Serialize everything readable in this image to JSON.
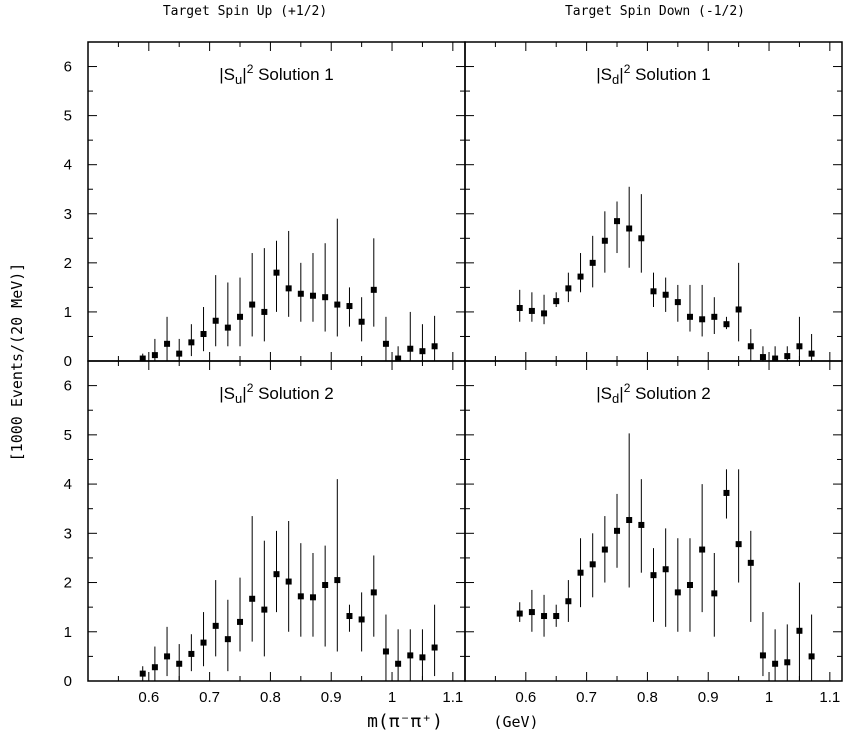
{
  "header": {
    "left": "Target Spin Up (+1/2)",
    "right": "Target Spin Down (-1/2)"
  },
  "ylabel": "[1000 Events/(20 MeV)]",
  "xlabel_main": "m(π⁻π⁺)",
  "xlabel_unit": "(GeV)",
  "chart_data": [
    {
      "type": "scatter",
      "title": "|Su|² Solution 1",
      "xlim": [
        0.5,
        1.12
      ],
      "ylim": [
        0,
        6.5
      ],
      "x": [
        0.59,
        0.61,
        0.63,
        0.65,
        0.67,
        0.69,
        0.71,
        0.73,
        0.75,
        0.77,
        0.79,
        0.81,
        0.83,
        0.85,
        0.87,
        0.89,
        0.91,
        0.93,
        0.95,
        0.97,
        0.99,
        1.01,
        1.03,
        1.05,
        1.07
      ],
      "y": [
        0.05,
        0.12,
        0.35,
        0.15,
        0.38,
        0.55,
        0.82,
        0.68,
        0.9,
        1.15,
        1.0,
        1.8,
        1.48,
        1.37,
        1.33,
        1.3,
        1.15,
        1.12,
        0.8,
        1.45,
        0.35,
        0.05,
        0.25,
        0.2,
        0.3
      ],
      "ylow": [
        0.0,
        0.0,
        0.0,
        0.0,
        0.1,
        0.2,
        0.3,
        0.3,
        0.3,
        0.5,
        0.4,
        1.0,
        0.9,
        0.8,
        0.8,
        0.6,
        0.5,
        0.7,
        0.4,
        0.7,
        0.0,
        0.0,
        0.0,
        0.0,
        0.0
      ],
      "yhigh": [
        0.15,
        0.45,
        0.9,
        0.45,
        0.75,
        1.1,
        1.75,
        1.6,
        1.7,
        2.2,
        2.3,
        2.45,
        2.65,
        2.0,
        2.2,
        2.4,
        2.9,
        1.5,
        1.3,
        2.5,
        0.9,
        0.3,
        1.0,
        0.75,
        0.92
      ]
    },
    {
      "type": "scatter",
      "title": "|Sd|² Solution 1",
      "xlim": [
        0.5,
        1.12
      ],
      "ylim": [
        0,
        6.5
      ],
      "x": [
        0.59,
        0.61,
        0.63,
        0.65,
        0.67,
        0.69,
        0.71,
        0.73,
        0.75,
        0.77,
        0.79,
        0.81,
        0.83,
        0.85,
        0.87,
        0.89,
        0.91,
        0.93,
        0.95,
        0.97,
        0.99,
        1.01,
        1.03,
        1.05,
        1.07
      ],
      "y": [
        1.08,
        1.02,
        0.97,
        1.22,
        1.48,
        1.72,
        2.0,
        2.45,
        2.85,
        2.7,
        2.5,
        1.42,
        1.35,
        1.2,
        0.9,
        0.85,
        0.9,
        0.75,
        1.05,
        0.3,
        0.08,
        0.05,
        0.1,
        0.3,
        0.15
      ],
      "ylow": [
        0.8,
        0.8,
        0.75,
        1.1,
        1.2,
        1.4,
        1.5,
        1.8,
        2.2,
        1.9,
        1.8,
        1.1,
        1.0,
        0.8,
        0.6,
        0.5,
        0.55,
        0.65,
        0.4,
        0.0,
        0.0,
        0.0,
        0.0,
        0.0,
        0.0
      ],
      "yhigh": [
        1.45,
        1.4,
        1.35,
        1.4,
        1.8,
        2.2,
        2.55,
        3.05,
        3.25,
        3.55,
        3.4,
        1.8,
        1.7,
        1.55,
        1.55,
        1.55,
        1.3,
        0.9,
        2.0,
        0.65,
        0.3,
        0.3,
        0.3,
        0.9,
        0.55
      ]
    },
    {
      "type": "scatter",
      "title": "|Su|² Solution 2",
      "xlim": [
        0.5,
        1.12
      ],
      "ylim": [
        0,
        6.5
      ],
      "x": [
        0.59,
        0.61,
        0.63,
        0.65,
        0.67,
        0.69,
        0.71,
        0.73,
        0.75,
        0.77,
        0.79,
        0.81,
        0.83,
        0.85,
        0.87,
        0.89,
        0.91,
        0.93,
        0.95,
        0.97,
        0.99,
        1.01,
        1.03,
        1.05,
        1.07
      ],
      "y": [
        0.15,
        0.28,
        0.5,
        0.35,
        0.55,
        0.78,
        1.12,
        0.85,
        1.2,
        1.67,
        1.45,
        2.17,
        2.02,
        1.72,
        1.7,
        1.95,
        2.05,
        1.32,
        1.25,
        1.8,
        0.6,
        0.35,
        0.52,
        0.48,
        0.68
      ],
      "ylow": [
        0.0,
        0.0,
        0.1,
        0.0,
        0.2,
        0.3,
        0.5,
        0.2,
        0.6,
        0.8,
        0.5,
        1.4,
        1.0,
        0.9,
        0.9,
        0.7,
        0.6,
        1.0,
        0.6,
        0.9,
        0.0,
        0.0,
        0.0,
        0.0,
        0.1
      ],
      "yhigh": [
        0.3,
        0.7,
        1.1,
        0.75,
        0.95,
        1.4,
        2.05,
        1.65,
        2.1,
        3.35,
        2.85,
        3.05,
        3.25,
        2.8,
        2.6,
        2.75,
        4.1,
        1.55,
        1.8,
        2.55,
        1.35,
        1.05,
        1.05,
        1.05,
        1.55
      ]
    },
    {
      "type": "scatter",
      "title": "|Sd|² Solution 2",
      "xlim": [
        0.5,
        1.12
      ],
      "ylim": [
        0,
        6.5
      ],
      "x": [
        0.59,
        0.61,
        0.63,
        0.65,
        0.67,
        0.69,
        0.71,
        0.73,
        0.75,
        0.77,
        0.79,
        0.81,
        0.83,
        0.85,
        0.87,
        0.89,
        0.91,
        0.93,
        0.95,
        0.97,
        0.99,
        1.01,
        1.03,
        1.05,
        1.07
      ],
      "y": [
        1.37,
        1.4,
        1.32,
        1.32,
        1.62,
        2.2,
        2.37,
        2.67,
        3.05,
        3.27,
        3.17,
        2.15,
        2.27,
        1.8,
        1.95,
        2.67,
        1.78,
        3.82,
        2.78,
        2.4,
        0.52,
        0.35,
        0.38,
        1.02,
        0.5
      ],
      "ylow": [
        1.2,
        1.0,
        0.9,
        1.1,
        1.2,
        1.5,
        1.7,
        2.0,
        2.3,
        1.9,
        2.2,
        1.2,
        1.1,
        1.0,
        1.0,
        1.4,
        0.9,
        3.3,
        2.0,
        1.2,
        0.1,
        0.0,
        0.0,
        0.0,
        0.0
      ],
      "yhigh": [
        1.6,
        1.85,
        1.75,
        1.55,
        2.05,
        2.9,
        3.0,
        3.35,
        3.8,
        5.03,
        4.1,
        2.7,
        3.1,
        2.9,
        2.9,
        4.0,
        2.6,
        4.3,
        4.3,
        3.05,
        1.4,
        1.05,
        1.15,
        2.0,
        1.35
      ]
    }
  ]
}
